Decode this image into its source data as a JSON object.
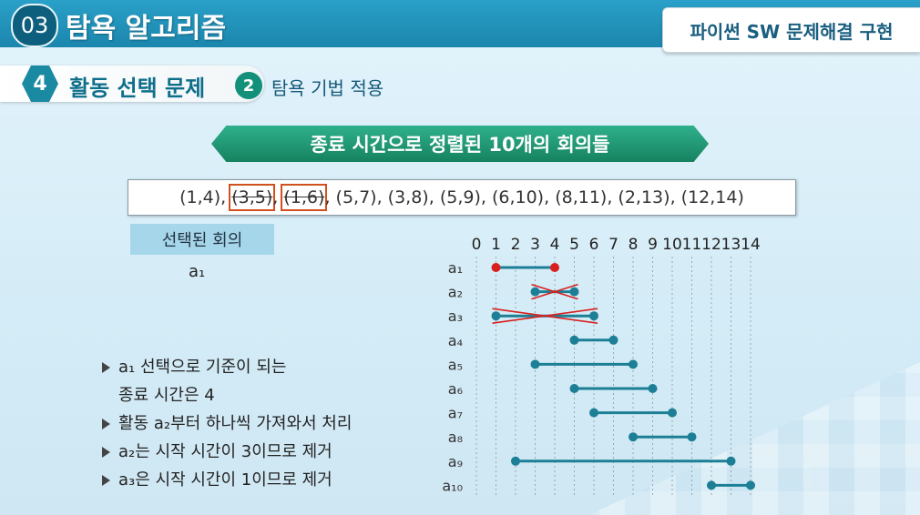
{
  "header": {
    "section_number": "03",
    "section_title": "탐욕 알고리즘",
    "course_tag": "파이썬 SW 문제해결 구현"
  },
  "subheader": {
    "number": "4",
    "title": "활동 선택 문제",
    "step_number": "2",
    "step_title": "탐욕 기법 적용"
  },
  "banner": "종료 시간으로 정렬된 10개의 회의들",
  "meetings": [
    {
      "text": "(1,4)",
      "struck": false,
      "boxed": false
    },
    {
      "text": "(3,5)",
      "struck": true,
      "boxed": true
    },
    {
      "text": "(1,6)",
      "struck": true,
      "boxed": true
    },
    {
      "text": "(5,7)",
      "struck": false,
      "boxed": false
    },
    {
      "text": "(3,8)",
      "struck": false,
      "boxed": false
    },
    {
      "text": "(5,9)",
      "struck": false,
      "boxed": false
    },
    {
      "text": "(6,10)",
      "struck": false,
      "boxed": false
    },
    {
      "text": "(8,11)",
      "struck": false,
      "boxed": false
    },
    {
      "text": "(2,13)",
      "struck": false,
      "boxed": false
    },
    {
      "text": "(12,14)",
      "struck": false,
      "boxed": false
    }
  ],
  "selected": {
    "header": "선택된 회의",
    "items": [
      "a₁"
    ]
  },
  "bullets": [
    {
      "arrow": true,
      "text": "a₁ 선택으로 기준이 되는"
    },
    {
      "arrow": false,
      "text": "종료 시간은 4"
    },
    {
      "arrow": true,
      "text": "활동 a₂부터 하나씩 가져와서 처리"
    },
    {
      "arrow": true,
      "text": "a₂는 시작 시간이 3이므로 제거"
    },
    {
      "arrow": true,
      "text": "a₃은 시작 시간이 1이므로 제거"
    }
  ],
  "timeline": {
    "ticks": [
      "0",
      "1",
      "2",
      "3",
      "4",
      "5",
      "6",
      "7",
      "8",
      "9",
      "10",
      "11",
      "12",
      "13",
      "14"
    ],
    "activities": [
      {
        "label": "a₁",
        "start": 1,
        "end": 4,
        "status": "selected"
      },
      {
        "label": "a₂",
        "start": 3,
        "end": 5,
        "status": "removed"
      },
      {
        "label": "a₃",
        "start": 1,
        "end": 6,
        "status": "removed"
      },
      {
        "label": "a₄",
        "start": 5,
        "end": 7,
        "status": "pending"
      },
      {
        "label": "a₅",
        "start": 3,
        "end": 8,
        "status": "pending"
      },
      {
        "label": "a₆",
        "start": 5,
        "end": 9,
        "status": "pending"
      },
      {
        "label": "a₇",
        "start": 6,
        "end": 10,
        "status": "pending"
      },
      {
        "label": "a₈",
        "start": 8,
        "end": 11,
        "status": "pending"
      },
      {
        "label": "a₉",
        "start": 2,
        "end": 13,
        "status": "pending"
      },
      {
        "label": "a₁₀",
        "start": 12,
        "end": 14,
        "status": "pending"
      }
    ],
    "colors": {
      "selected": "#d8201e",
      "normal": "#1c7f96",
      "cross": "#d8201e",
      "grid": "#9aa8b0"
    }
  }
}
